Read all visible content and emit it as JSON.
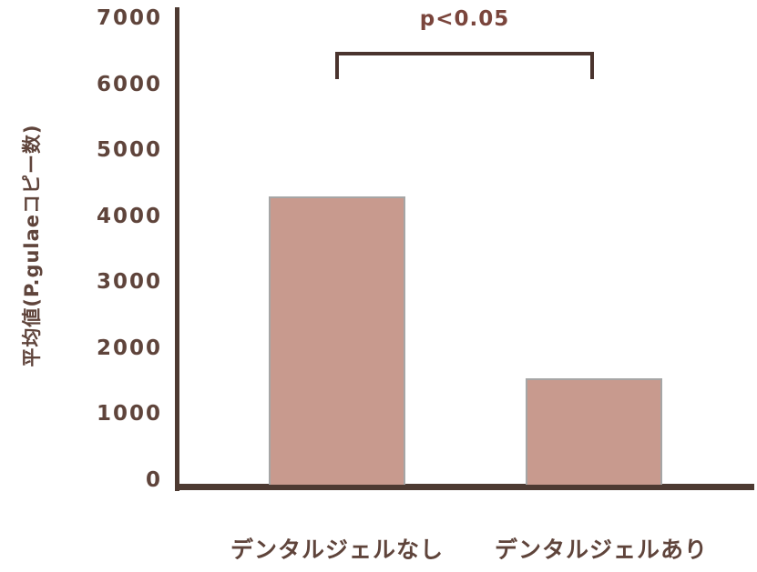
{
  "chart_data": {
    "type": "bar",
    "title": "",
    "annotation": "p<0.05",
    "ylabel": "平均値(P.gulaeコピー数)",
    "xlabel": "",
    "categories": [
      "デンタルジェルなし",
      "デンタルジェルあり"
    ],
    "values": [
      4300,
      1550
    ],
    "yticks": [
      7000,
      6000,
      5000,
      4000,
      3000,
      2000,
      1000,
      0
    ],
    "ylim": [
      0,
      7000
    ],
    "grid": false,
    "legend": "none",
    "colors": {
      "bar_fill": "#c89a8e",
      "bar_edge": "#a6a6a6",
      "axis": "#4d3a32",
      "text": "#5f443b",
      "annotation_text": "#7a453c"
    }
  }
}
